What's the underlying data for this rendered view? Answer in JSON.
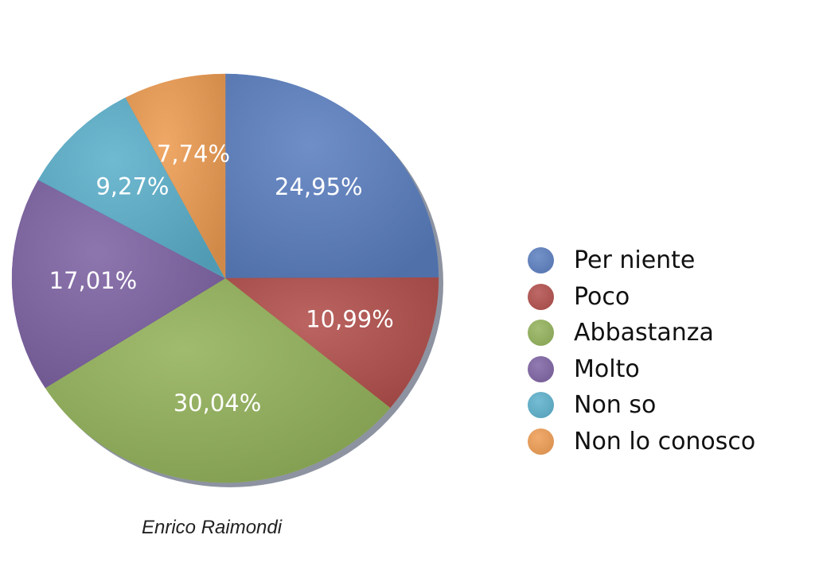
{
  "chart_data": {
    "type": "pie",
    "categories": [
      "Per niente",
      "Poco",
      "Abbastanza",
      "Molto",
      "Non so",
      "Non lo conosco"
    ],
    "values": [
      24.95,
      10.99,
      30.04,
      17.01,
      9.27,
      7.74
    ],
    "value_labels": [
      "24,95%",
      "10,99%",
      "30,04%",
      "17,01%",
      "9,27%",
      "7,74%"
    ],
    "colors": [
      "#5b7fc0",
      "#b24f4c",
      "#93b25a",
      "#7d62a3",
      "#5bb0cb",
      "#ee9c52"
    ],
    "start": "12 o'clock",
    "direction": "clockwise",
    "legend_position": "right",
    "shading": "3d-gradient"
  },
  "credit": "Enrico Raimondi"
}
